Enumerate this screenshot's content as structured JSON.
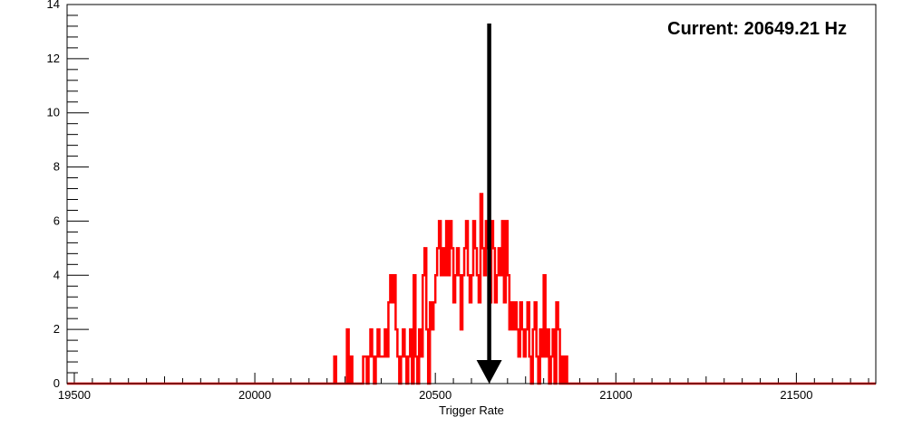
{
  "chart_data": {
    "type": "histogram",
    "title": "",
    "xlabel": "Trigger Rate",
    "ylabel": "",
    "xlim": [
      19480,
      21720
    ],
    "ylim": [
      0,
      14
    ],
    "x_ticks": [
      19500,
      20000,
      20500,
      21000,
      21500
    ],
    "y_ticks": [
      0,
      2,
      4,
      6,
      8,
      10,
      12,
      14
    ],
    "grid": false,
    "bin_width": 5,
    "series": [
      {
        "color": "#ff0000",
        "bins": [
          [
            20220,
            20225,
            1
          ],
          [
            20225,
            20255,
            0
          ],
          [
            20255,
            20260,
            2
          ],
          [
            20260,
            20265,
            0
          ],
          [
            20265,
            20270,
            1
          ],
          [
            20270,
            20300,
            0
          ],
          [
            20300,
            20310,
            1
          ],
          [
            20310,
            20315,
            0
          ],
          [
            20315,
            20320,
            1
          ],
          [
            20320,
            20325,
            2
          ],
          [
            20325,
            20330,
            1
          ],
          [
            20330,
            20335,
            0
          ],
          [
            20335,
            20340,
            1
          ],
          [
            20340,
            20345,
            2
          ],
          [
            20345,
            20350,
            1
          ],
          [
            20350,
            20360,
            1
          ],
          [
            20360,
            20365,
            2
          ],
          [
            20365,
            20370,
            1
          ],
          [
            20370,
            20375,
            3
          ],
          [
            20375,
            20380,
            4
          ],
          [
            20380,
            20385,
            3
          ],
          [
            20385,
            20390,
            4
          ],
          [
            20390,
            20395,
            2
          ],
          [
            20395,
            20400,
            1
          ],
          [
            20400,
            20405,
            0
          ],
          [
            20405,
            20410,
            1
          ],
          [
            20410,
            20415,
            2
          ],
          [
            20415,
            20420,
            1
          ],
          [
            20420,
            20425,
            0
          ],
          [
            20425,
            20430,
            1
          ],
          [
            20430,
            20435,
            2
          ],
          [
            20435,
            20440,
            0
          ],
          [
            20440,
            20445,
            4
          ],
          [
            20445,
            20450,
            1
          ],
          [
            20450,
            20455,
            0
          ],
          [
            20455,
            20460,
            2
          ],
          [
            20460,
            20465,
            1
          ],
          [
            20465,
            20470,
            4
          ],
          [
            20470,
            20475,
            5
          ],
          [
            20475,
            20480,
            2
          ],
          [
            20480,
            20485,
            0
          ],
          [
            20485,
            20490,
            3
          ],
          [
            20490,
            20495,
            2
          ],
          [
            20495,
            20500,
            3
          ],
          [
            20500,
            20505,
            4
          ],
          [
            20505,
            20510,
            5
          ],
          [
            20510,
            20515,
            6
          ],
          [
            20515,
            20520,
            4
          ],
          [
            20520,
            20525,
            5
          ],
          [
            20525,
            20530,
            4
          ],
          [
            20530,
            20535,
            6
          ],
          [
            20535,
            20540,
            4
          ],
          [
            20540,
            20545,
            6
          ],
          [
            20545,
            20550,
            5
          ],
          [
            20550,
            20555,
            3
          ],
          [
            20555,
            20560,
            4
          ],
          [
            20560,
            20565,
            5
          ],
          [
            20565,
            20570,
            4
          ],
          [
            20570,
            20575,
            2
          ],
          [
            20575,
            20580,
            4
          ],
          [
            20580,
            20585,
            5
          ],
          [
            20585,
            20590,
            6
          ],
          [
            20590,
            20595,
            4
          ],
          [
            20595,
            20600,
            3
          ],
          [
            20600,
            20605,
            4
          ],
          [
            20605,
            20610,
            6
          ],
          [
            20610,
            20615,
            5
          ],
          [
            20615,
            20620,
            4
          ],
          [
            20620,
            20625,
            3
          ],
          [
            20625,
            20630,
            7
          ],
          [
            20630,
            20635,
            5
          ],
          [
            20635,
            20640,
            4
          ],
          [
            20640,
            20645,
            6
          ],
          [
            20645,
            20650,
            5
          ],
          [
            20650,
            20655,
            3
          ],
          [
            20655,
            20660,
            6
          ],
          [
            20660,
            20665,
            5
          ],
          [
            20665,
            20670,
            3
          ],
          [
            20670,
            20675,
            4
          ],
          [
            20675,
            20680,
            5
          ],
          [
            20680,
            20685,
            4
          ],
          [
            20685,
            20690,
            6
          ],
          [
            20690,
            20695,
            3
          ],
          [
            20695,
            20700,
            6
          ],
          [
            20700,
            20705,
            4
          ],
          [
            20705,
            20710,
            2
          ],
          [
            20710,
            20715,
            3
          ],
          [
            20715,
            20720,
            2
          ],
          [
            20720,
            20725,
            3
          ],
          [
            20725,
            20730,
            2
          ],
          [
            20730,
            20735,
            1
          ],
          [
            20735,
            20740,
            3
          ],
          [
            20740,
            20745,
            2
          ],
          [
            20745,
            20750,
            1
          ],
          [
            20750,
            20755,
            2
          ],
          [
            20755,
            20760,
            3
          ],
          [
            20760,
            20765,
            1
          ],
          [
            20765,
            20770,
            0
          ],
          [
            20770,
            20775,
            2
          ],
          [
            20775,
            20780,
            3
          ],
          [
            20780,
            20785,
            1
          ],
          [
            20785,
            20790,
            0
          ],
          [
            20790,
            20795,
            2
          ],
          [
            20795,
            20800,
            1
          ],
          [
            20800,
            20805,
            4
          ],
          [
            20805,
            20810,
            1
          ],
          [
            20810,
            20815,
            2
          ],
          [
            20815,
            20820,
            0
          ],
          [
            20820,
            20825,
            1
          ],
          [
            20825,
            20830,
            2
          ],
          [
            20830,
            20835,
            0
          ],
          [
            20835,
            20840,
            3
          ],
          [
            20840,
            20845,
            2
          ],
          [
            20845,
            20850,
            0
          ],
          [
            20850,
            20855,
            1
          ],
          [
            20855,
            20860,
            0
          ],
          [
            20860,
            20865,
            1
          ]
        ]
      }
    ],
    "marker": {
      "x": 20649.21,
      "y_top": 13.3,
      "color": "#000000",
      "label": "Current: 20649.21 Hz"
    }
  }
}
